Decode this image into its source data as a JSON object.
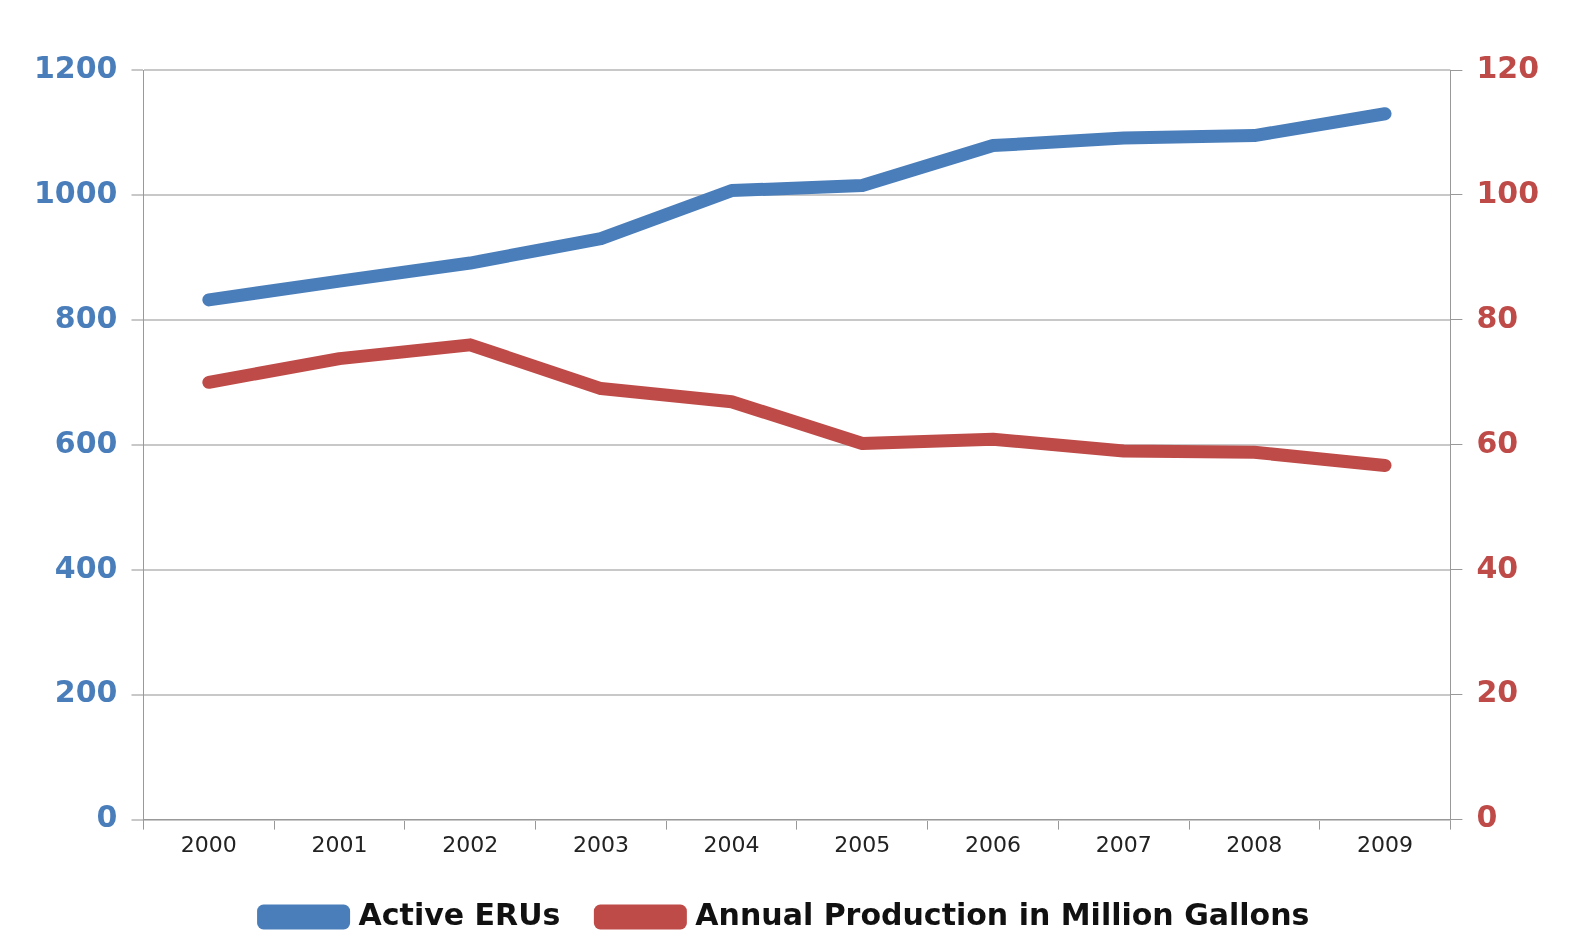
{
  "chart_data": {
    "type": "line",
    "categories": [
      "2000",
      "2001",
      "2002",
      "2003",
      "2004",
      "2005",
      "2006",
      "2007",
      "2008",
      "2009"
    ],
    "series": [
      {
        "name": "Active ERUs",
        "color": "#4a7ebb",
        "values": [
          832,
          862,
          891,
          930,
          1007,
          1015,
          1079,
          1091,
          1095,
          1130
        ]
      },
      {
        "name": "Annual Production in Million Gallons",
        "color": "#be4b48",
        "axis": "y2",
        "values": [
          70,
          73.8,
          76,
          69,
          66.9,
          60.2,
          60.9,
          59,
          58.8,
          56.7
        ]
      }
    ],
    "ylim": [
      0,
      1200
    ],
    "yticks": [
      0,
      200,
      400,
      600,
      800,
      1000,
      1200
    ],
    "y2lim": [
      0,
      120
    ],
    "y2ticks": [
      0,
      20,
      40,
      60,
      80,
      100,
      120
    ],
    "grid": "y",
    "legend": "bottom",
    "marker": "none",
    "line_style": "solid"
  }
}
